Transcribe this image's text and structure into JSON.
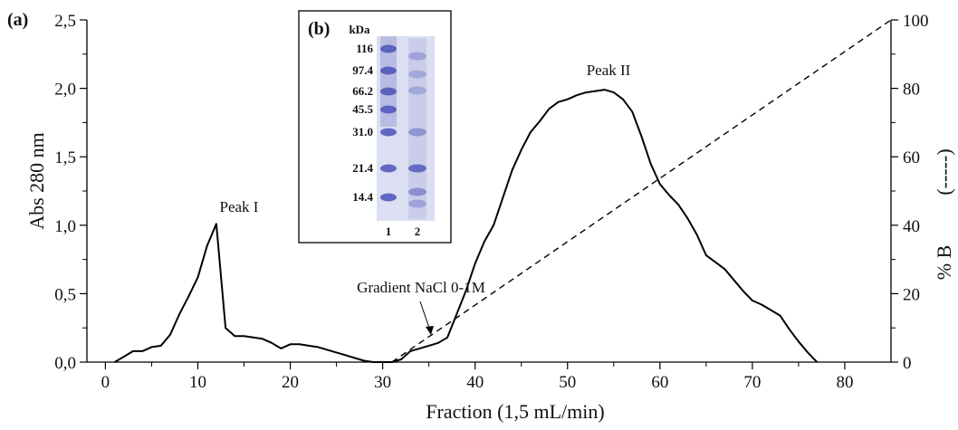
{
  "chart_data": {
    "type": "line",
    "panel_label": "(a)",
    "xlabel": "Fraction (1,5 mL/min)",
    "ylabel_left": "Abs 280 nm",
    "ylabel_right": "% B",
    "ylabel_right_marker": "(-----)",
    "xlim": [
      -2,
      85
    ],
    "ylim_left": [
      0,
      2.5
    ],
    "ylim_right": [
      0,
      100
    ],
    "x_ticks": [
      "0",
      "10",
      "20",
      "30",
      "40",
      "50",
      "60",
      "70",
      "80"
    ],
    "y_left_ticks": [
      "0,0",
      "0,5",
      "1,0",
      "1,5",
      "2,0",
      "2,5"
    ],
    "y_right_ticks": [
      "0",
      "20",
      "40",
      "60",
      "80",
      "100"
    ],
    "series": [
      {
        "style": "solid",
        "axis": "left",
        "x": [
          1,
          2,
          3,
          4,
          5,
          6,
          7,
          8,
          9,
          10,
          11,
          12,
          13,
          14,
          15,
          16,
          17,
          18,
          19,
          20,
          21,
          22,
          23,
          24,
          25,
          26,
          27,
          28,
          29,
          30,
          31,
          32,
          33,
          34,
          35,
          36,
          37,
          38,
          39,
          40,
          41,
          42,
          43,
          44,
          45,
          46,
          47,
          48,
          49,
          50,
          51,
          52,
          53,
          54,
          55,
          56,
          57,
          58,
          59,
          60,
          61,
          62,
          63,
          64,
          65,
          66,
          67,
          68,
          69,
          70,
          71,
          72,
          73,
          74,
          75,
          76,
          77
        ],
        "y": [
          0.0,
          0.04,
          0.08,
          0.08,
          0.11,
          0.12,
          0.2,
          0.35,
          0.48,
          0.62,
          0.85,
          1.01,
          0.25,
          0.19,
          0.19,
          0.18,
          0.17,
          0.14,
          0.1,
          0.13,
          0.13,
          0.12,
          0.11,
          0.09,
          0.07,
          0.05,
          0.03,
          0.01,
          0.0,
          0.0,
          0.0,
          0.02,
          0.08,
          0.1,
          0.12,
          0.14,
          0.18,
          0.35,
          0.52,
          0.72,
          0.88,
          1.0,
          1.2,
          1.4,
          1.55,
          1.68,
          1.76,
          1.85,
          1.9,
          1.92,
          1.95,
          1.97,
          1.98,
          1.99,
          1.97,
          1.92,
          1.83,
          1.65,
          1.45,
          1.3,
          1.22,
          1.15,
          1.05,
          0.93,
          0.78,
          0.73,
          0.68,
          0.6,
          0.52,
          0.45,
          0.42,
          0.38,
          0.34,
          0.24,
          0.15,
          0.07,
          0.0
        ]
      },
      {
        "style": "dashed",
        "axis": "right",
        "x": [
          31,
          85
        ],
        "y": [
          0,
          100
        ]
      }
    ],
    "annotations": {
      "peak1": "Peak I",
      "peak2": "Peak II",
      "gradient": "Gradient NaCl 0-1M"
    },
    "inset": {
      "label": "(b)",
      "unit": "kDa",
      "markers": [
        "116",
        "97.4",
        "66.2",
        "45.5",
        "31.0",
        "21.4",
        "14.4"
      ],
      "lanes": [
        "1",
        "2"
      ]
    },
    "grid": false
  },
  "colors": {
    "line": "#000000",
    "gel_background": "#d9dbf0",
    "gel_band": "#4c52b8"
  }
}
